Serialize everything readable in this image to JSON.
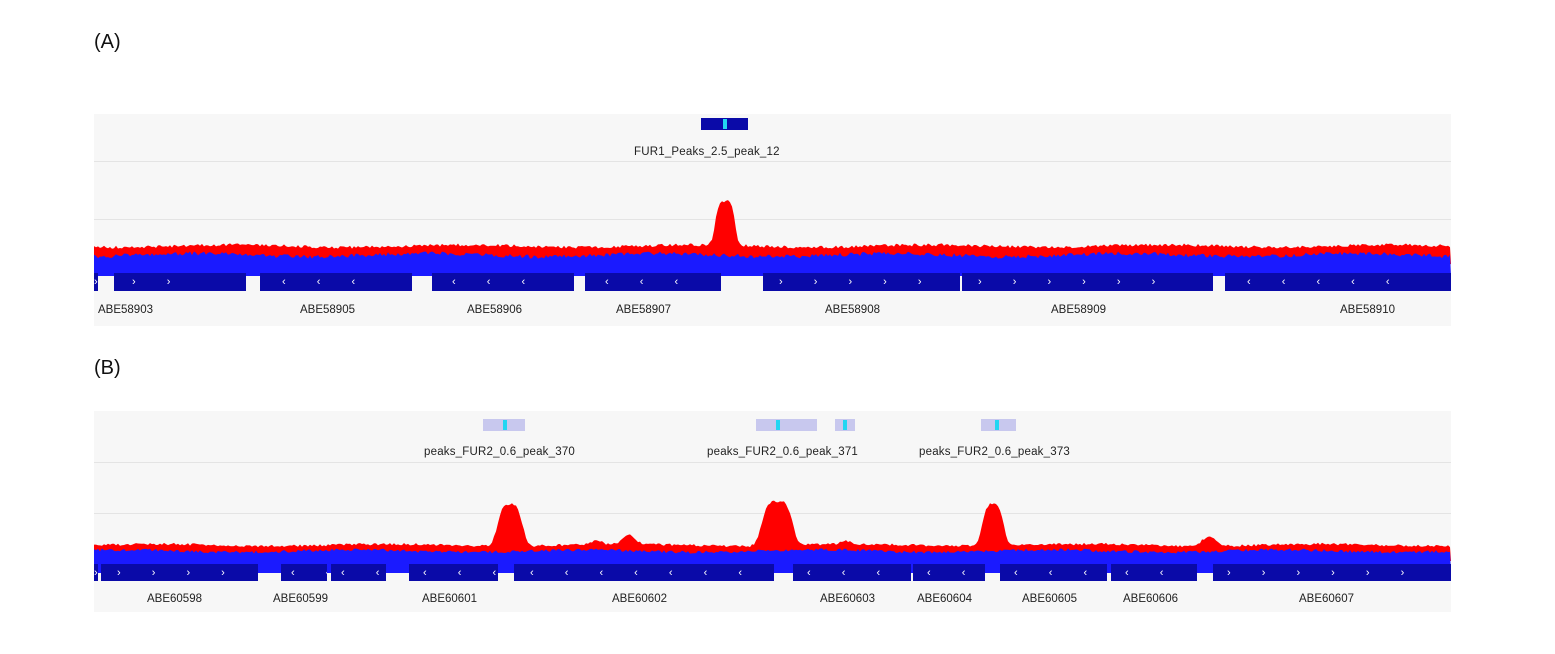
{
  "panels": {
    "a": {
      "label": "(A)",
      "peak_labels": [
        "FUR1_Peaks_2.5_peak_12"
      ],
      "genes": [
        {
          "label": "ABE58903",
          "arrows": "› ›"
        },
        {
          "label": "ABE58905",
          "arrows": "‹ ‹ ‹"
        },
        {
          "label": "ABE58906",
          "arrows": "‹ ‹ ‹"
        },
        {
          "label": "ABE58907",
          "arrows": "‹ ‹ ‹"
        },
        {
          "label": "ABE58908",
          "arrows": "› › › › ›"
        },
        {
          "label": "ABE58909",
          "arrows": "› › › › › ›"
        },
        {
          "label": "ABE58910",
          "arrows": "‹ ‹ ‹ ‹ ‹"
        }
      ]
    },
    "b": {
      "label": "(B)",
      "peak_labels": [
        "peaks_FUR2_0.6_peak_370",
        "peaks_FUR2_0.6_peak_371",
        "peaks_FUR2_0.6_peak_373"
      ],
      "genes": [
        {
          "label": "ABE60598",
          "arrows": "› › › ›"
        },
        {
          "label": "ABE60599",
          "arrows": "‹ ‹ ‹"
        },
        {
          "label": "ABE60601",
          "arrows": "‹ ‹ ‹"
        },
        {
          "label": "ABE60602",
          "arrows": "‹ ‹ ‹ ‹ ‹ ‹ ‹"
        },
        {
          "label": "ABE60603",
          "arrows": "‹ ‹ ‹"
        },
        {
          "label": "ABE60604",
          "arrows": "‹ ‹"
        },
        {
          "label": "ABE60605",
          "arrows": "‹ ‹ ‹"
        },
        {
          "label": "ABE60606",
          "arrows": "‹ ‹"
        },
        {
          "label": "ABE60607",
          "arrows": "› › › › › ›"
        }
      ]
    }
  },
  "colors": {
    "chip_coverage": "#ff0000",
    "input_coverage": "#1a1aff",
    "gene": "#0a0aa8",
    "peak_box_a": "#0a0aa8",
    "peak_box_b": "#c8c8ee",
    "peak_summit": "#22d6f2"
  }
}
